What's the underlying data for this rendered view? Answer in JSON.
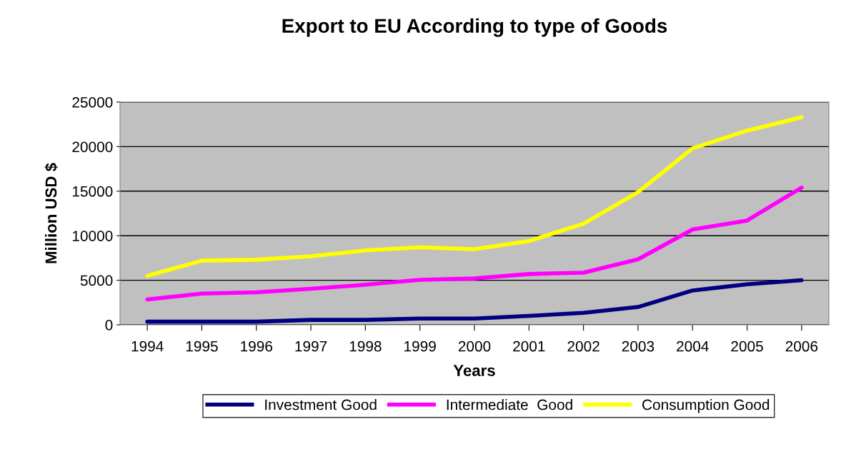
{
  "chart_data": {
    "type": "line",
    "title": "Export to EU According to type of Goods",
    "xlabel": "Years",
    "ylabel": "Million USD $",
    "categories": [
      "1994",
      "1995",
      "1996",
      "1997",
      "1998",
      "1999",
      "2000",
      "2001",
      "2002",
      "2003",
      "2004",
      "2005",
      "2006"
    ],
    "series": [
      {
        "name": "Investment Good",
        "color": "#000080",
        "values": [
          350,
          350,
          350,
          550,
          550,
          700,
          700,
          1000,
          1350,
          2000,
          3850,
          4550,
          5000
        ]
      },
      {
        "name": "Intermediate  Good",
        "color": "#ff00ff",
        "values": [
          2850,
          3500,
          3650,
          4050,
          4500,
          5050,
          5200,
          5700,
          5850,
          7350,
          10700,
          11700,
          15400
        ]
      },
      {
        "name": "Consumption Good",
        "color": "#ffff00",
        "values": [
          5500,
          7200,
          7300,
          7700,
          8350,
          8700,
          8500,
          9400,
          11350,
          14900,
          19800,
          21800,
          23300
        ]
      }
    ],
    "ylim": [
      0,
      25000
    ],
    "yticks": [
      0,
      5000,
      10000,
      15000,
      20000,
      25000
    ],
    "grid": "y",
    "legend": "bottom",
    "marker": "none",
    "line_style": "solid"
  }
}
